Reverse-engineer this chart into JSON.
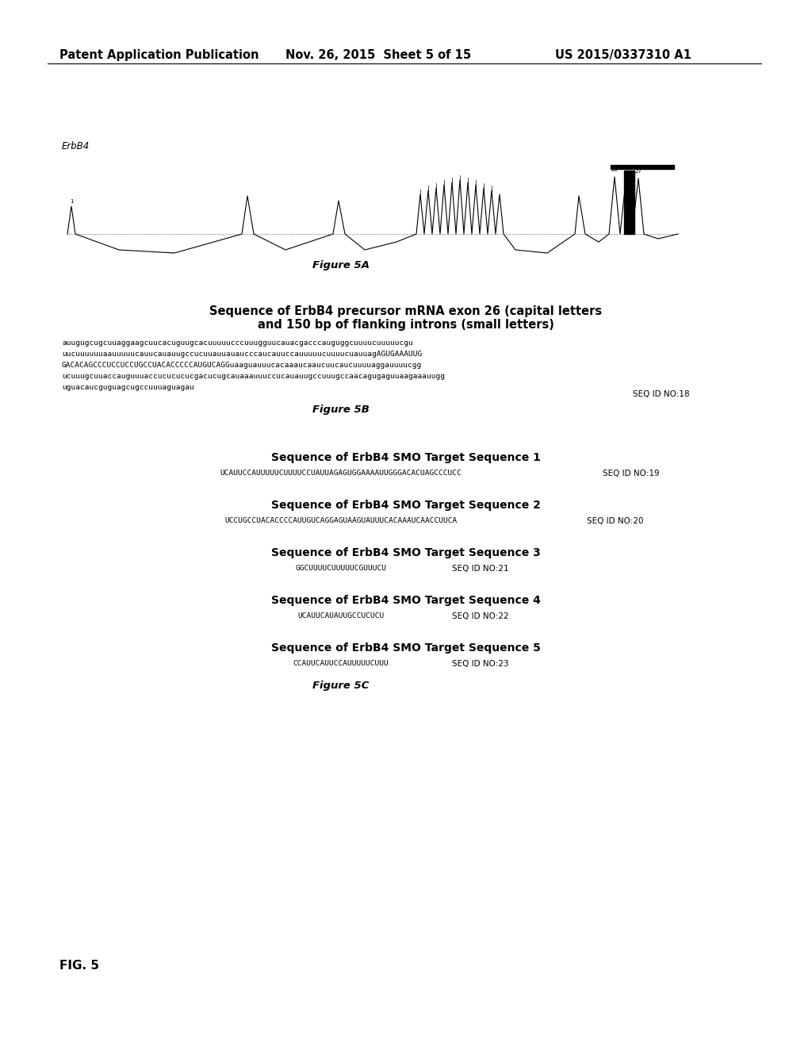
{
  "header_left": "Patent Application Publication",
  "header_mid": "Nov. 26, 2015  Sheet 5 of 15",
  "header_right": "US 2015/0337310 A1",
  "fig5a_label": "ErbB4",
  "fig5a_caption": "Figure 5A",
  "fig5b_title_line1": "Sequence of ErbB4 precursor mRNA exon 26 (capital letters",
  "fig5b_title_line2": "and 150 bp of flanking introns (small letters)",
  "fig5b_seq_line1": "auugugcugcuuaggaagcuucacuguugcacuuuuucccuuugguucauacgacccauguggcuuuucuuuuucgu",
  "fig5b_seq_line2": "uucuuuuuuaauuuuucauucauauugccucuuauuauaucccaucauuccauuuuucuuuucuauuagAGUGAAAUUG",
  "fig5b_seq_line3": "GACACAGCCCUCCUCCUGCCUACACCCCCAUGUCAGGuaaguauuucacaaaucaaucuucaucuuuuaggauuuucgg",
  "fig5b_seq_line4": "ucuuugcuuaccauguuuaccucucucucgacucugcauaaauuuccucauauugccuuugccaacagugaguuaagaaauugg",
  "fig5b_seq_line5": "uguacaucguguagcugccuuuaguagau",
  "fig5b_seqid": "SEQ ID NO:18",
  "fig5b_caption": "Figure 5B",
  "smo1_title": "Sequence of ErbB4 SMO Target Sequence 1",
  "smo1_seq": "UCAUUCCAUUUUUCUUUUCCUAUUAGAGUGGAAAAUUGGGACACUAGCCCUCC",
  "smo1_seqid": "SEQ ID NO:19",
  "smo2_title": "Sequence of ErbB4 SMO Target Sequence 2",
  "smo2_seq": "UCCUGCCUACACCCCAUUGUCAGGAGUAAGUAUUUCACAAAUCAACCUUCA",
  "smo2_seqid": "SEQ ID NO:20",
  "smo3_title": "Sequence of ErbB4 SMO Target Sequence 3",
  "smo3_seq": "GGCUUUUCUUUUUCGUUUCU",
  "smo3_seqid": "SEQ ID NO:21",
  "smo4_title": "Sequence of ErbB4 SMO Target Sequence 4",
  "smo4_seq": "UCAUUCAUAUUGCCUCUCU",
  "smo4_seqid": "SEQ ID NO:22",
  "smo5_title": "Sequence of ErbB4 SMO Target Sequence 5",
  "smo5_seq": "CCAUUCAUUCCAUUUUUCUUU",
  "smo5_seqid": "SEQ ID NO:23",
  "fig5c_caption": "Figure 5C",
  "fig5_label": "FIG. 5",
  "bg_color": "#ffffff",
  "text_color": "#000000",
  "header_fontsize": 10.5,
  "title_fontsize": 9.5,
  "seq_fontsize": 6.8,
  "caption_fontsize": 9.5,
  "label_fontsize": 11
}
